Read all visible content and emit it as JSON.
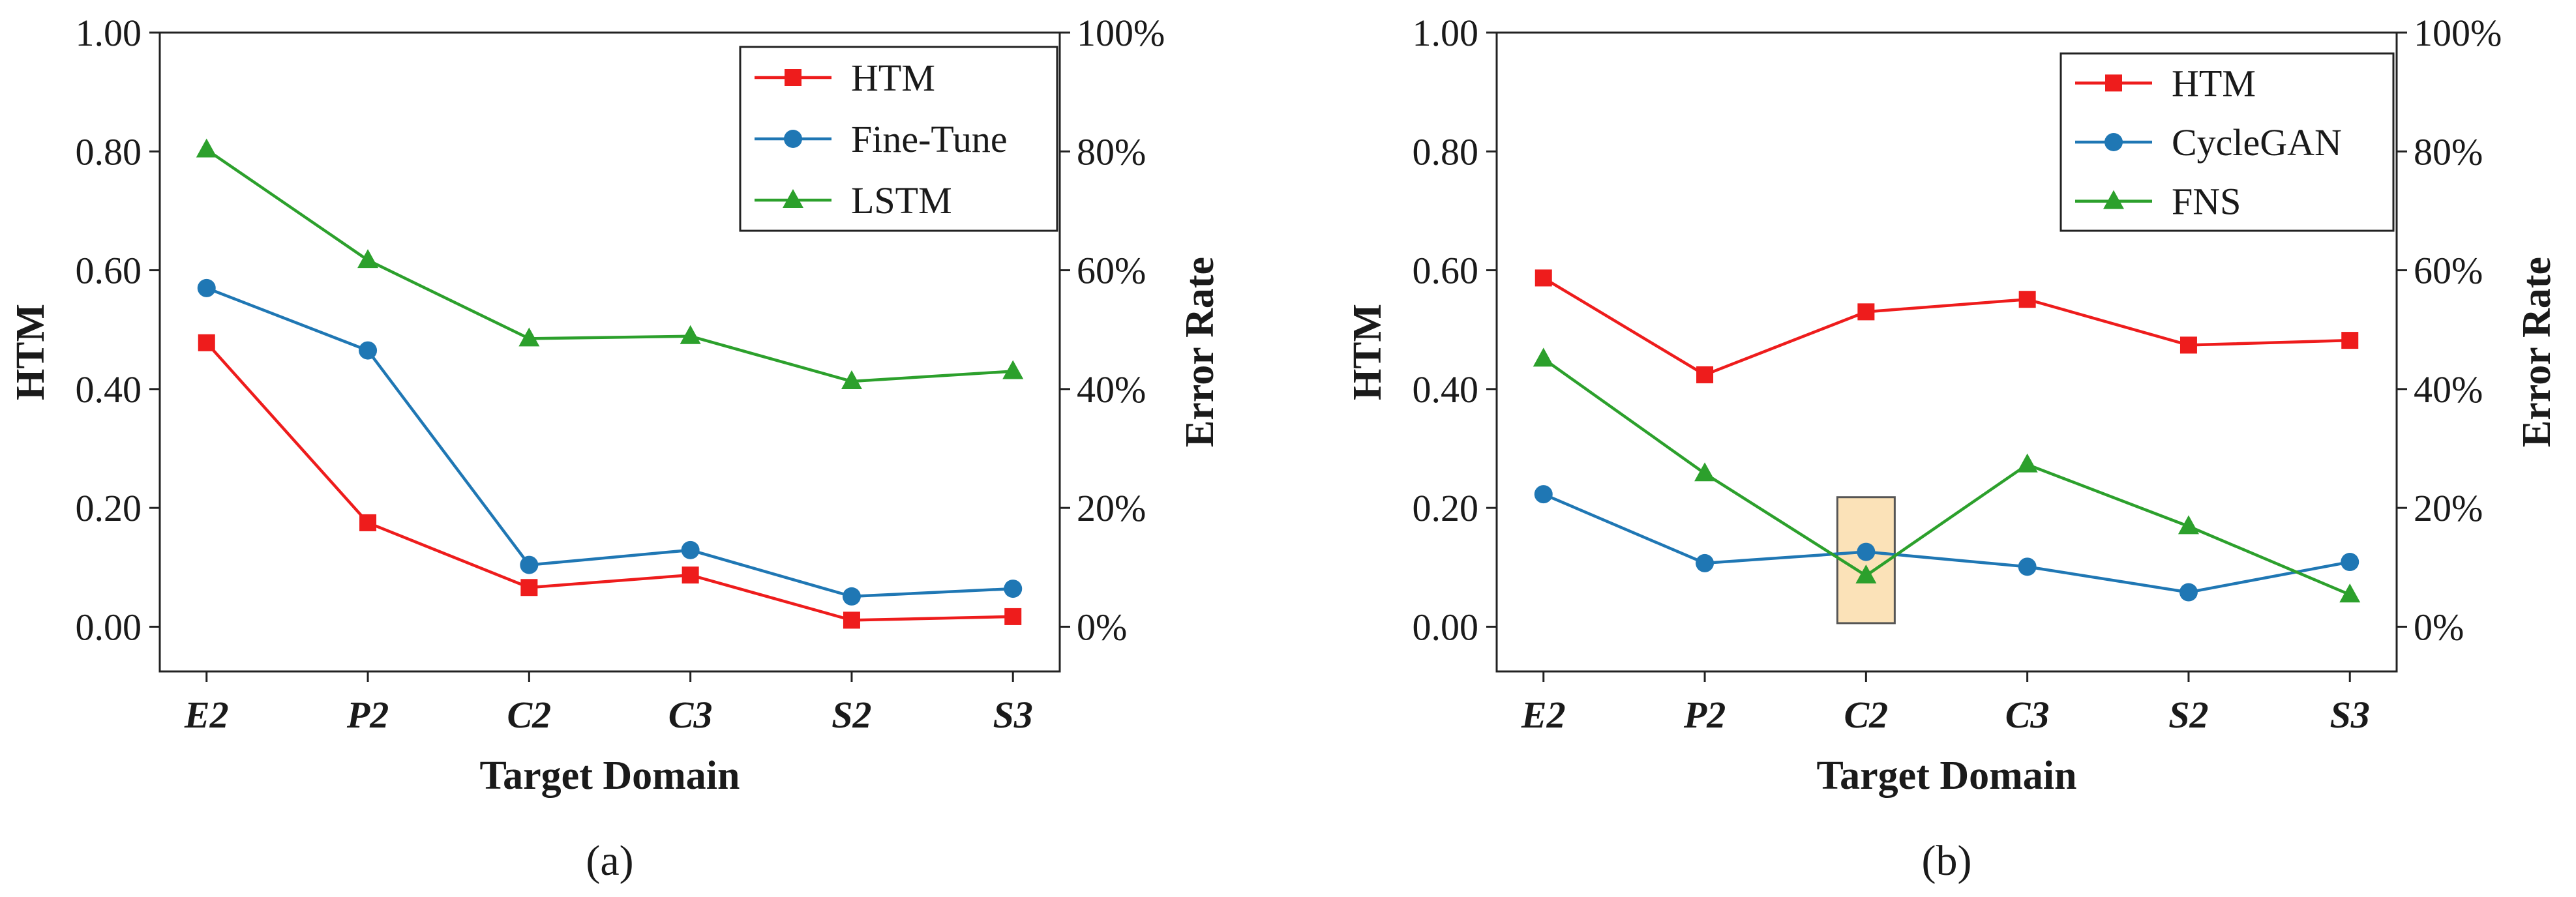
{
  "chart_data": [
    {
      "type": "line",
      "panel_label": "(a)",
      "categories": [
        "E2",
        "P2",
        "C2",
        "C3",
        "S2",
        "S3"
      ],
      "xlabel": "Target Domain",
      "ylabel": "HTM",
      "ylabel_right": "Error Rate",
      "ylim": [
        0,
        1
      ],
      "ylim_right": [
        0,
        100
      ],
      "yticks": [
        "0.00",
        "0.20",
        "0.40",
        "0.60",
        "0.80",
        "1.00"
      ],
      "yticks_right": [
        "0%",
        "20%",
        "40%",
        "60%",
        "80%",
        "100%"
      ],
      "grid": false,
      "legend_position": "top-right",
      "series": [
        {
          "name": "HTM",
          "color": "#ee1c1c",
          "marker": "square",
          "values": [
            0.478,
            0.175,
            0.066,
            0.087,
            0.011,
            0.017
          ]
        },
        {
          "name": "Fine-Tune",
          "color": "#1f77b4",
          "marker": "circle",
          "values": [
            0.57,
            0.465,
            0.104,
            0.129,
            0.051,
            0.064
          ]
        },
        {
          "name": "LSTM",
          "color": "#2ca02c",
          "marker": "triangle",
          "values": [
            0.803,
            0.617,
            0.485,
            0.489,
            0.413,
            0.43
          ]
        }
      ]
    },
    {
      "type": "line",
      "panel_label": "(b)",
      "categories": [
        "E2",
        "P2",
        "C2",
        "C3",
        "S2",
        "S3"
      ],
      "xlabel": "Target Domain",
      "ylabel": "HTM",
      "ylabel_right": "Error Rate",
      "ylim": [
        0,
        1
      ],
      "ylim_right": [
        0,
        100
      ],
      "yticks": [
        "0.00",
        "0.20",
        "0.40",
        "0.60",
        "0.80",
        "1.00"
      ],
      "yticks_right": [
        "0%",
        "20%",
        "40%",
        "60%",
        "80%",
        "100%"
      ],
      "grid": false,
      "legend_position": "top-right",
      "highlight_category": "C2",
      "highlight_color": "#fbe2b8",
      "series": [
        {
          "name": "HTM",
          "color": "#ee1c1c",
          "marker": "square",
          "values": [
            0.587,
            0.424,
            0.53,
            0.551,
            0.474,
            0.482
          ]
        },
        {
          "name": "CycleGAN",
          "color": "#1f77b4",
          "marker": "circle",
          "values": [
            0.223,
            0.107,
            0.126,
            0.101,
            0.058,
            0.109
          ]
        },
        {
          "name": "FNS",
          "color": "#2ca02c",
          "marker": "triangle",
          "values": [
            0.451,
            0.258,
            0.086,
            0.273,
            0.169,
            0.054
          ]
        }
      ]
    }
  ]
}
